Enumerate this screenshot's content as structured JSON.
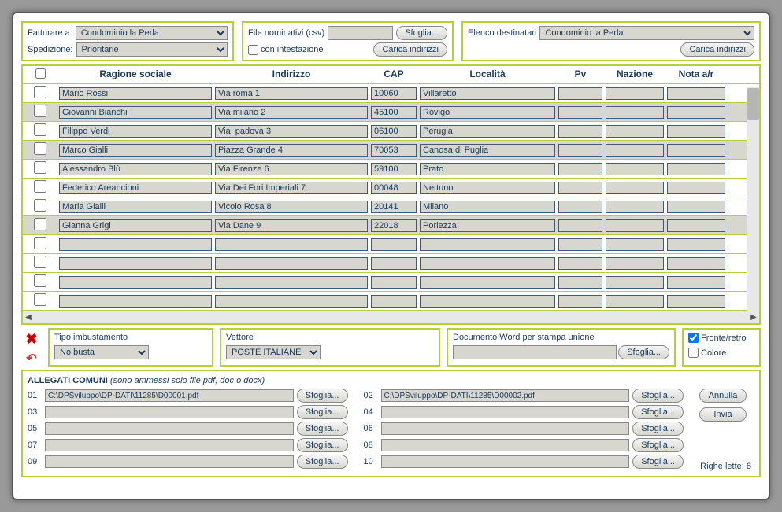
{
  "topbar": {
    "fatturare_label": "Fatturare a:",
    "fatturare_value": "Condominio la Perla",
    "spedizione_label": "Spedizione:",
    "spedizione_value": "Prioritarie",
    "file_nom_label": "File nominativi (csv)",
    "sfoglia": "Sfoglia...",
    "con_intest_label": "con intestazione",
    "carica_indirizzi": "Carica indirizzi",
    "elenco_dest_label": "Elenco destinatari",
    "elenco_dest_value": "Condominio la Perla"
  },
  "table": {
    "headers": {
      "ragione": "Ragione sociale",
      "indirizzo": "Indirizzo",
      "cap": "CAP",
      "localita": "Località",
      "pv": "Pv",
      "nazione": "Nazione",
      "nota": "Nota a/r"
    },
    "rows": [
      {
        "sel": false,
        "rs": "Mario Rossi",
        "ind": "Via roma 1",
        "cap": "10060",
        "loc": "Villaretto",
        "pv": "",
        "naz": "",
        "nota": ""
      },
      {
        "sel": true,
        "rs": "Giovanni Bianchi",
        "ind": "Via milano 2",
        "cap": "45100",
        "loc": "Rovigo",
        "pv": "",
        "naz": "",
        "nota": ""
      },
      {
        "sel": false,
        "rs": "Filippo Verdi",
        "ind": "Via  padova 3",
        "cap": "06100",
        "loc": "Perugia",
        "pv": "",
        "naz": "",
        "nota": ""
      },
      {
        "sel": true,
        "rs": "Marco Gialli",
        "ind": "Piazza Grande 4",
        "cap": "70053",
        "loc": "Canosa di Puglia",
        "pv": "",
        "naz": "",
        "nota": ""
      },
      {
        "sel": false,
        "rs": "Alessandro Blù",
        "ind": "Via Firenze 6",
        "cap": "59100",
        "loc": "Prato",
        "pv": "",
        "naz": "",
        "nota": ""
      },
      {
        "sel": false,
        "rs": "Federico Areancioni",
        "ind": "Via Dei Fori Imperiali 7",
        "cap": "00048",
        "loc": "Nettuno",
        "pv": "",
        "naz": "",
        "nota": ""
      },
      {
        "sel": false,
        "rs": "Maria Gialli",
        "ind": "Vicolo Rosa 8",
        "cap": "20141",
        "loc": "Milano",
        "pv": "",
        "naz": "",
        "nota": ""
      },
      {
        "sel": true,
        "rs": "Gianna Grigi",
        "ind": "Via Dane 9",
        "cap": "22018",
        "loc": "Porlezza",
        "pv": "",
        "naz": "",
        "nota": ""
      },
      {
        "sel": false,
        "rs": "",
        "ind": "",
        "cap": "",
        "loc": "",
        "pv": "",
        "naz": "",
        "nota": ""
      },
      {
        "sel": false,
        "rs": "",
        "ind": "",
        "cap": "",
        "loc": "",
        "pv": "",
        "naz": "",
        "nota": ""
      },
      {
        "sel": false,
        "rs": "",
        "ind": "",
        "cap": "",
        "loc": "",
        "pv": "",
        "naz": "",
        "nota": ""
      },
      {
        "sel": false,
        "rs": "",
        "ind": "",
        "cap": "",
        "loc": "",
        "pv": "",
        "naz": "",
        "nota": ""
      },
      {
        "sel": false,
        "rs": "",
        "ind": "",
        "cap": "",
        "loc": "",
        "pv": "",
        "naz": "",
        "nota": ""
      }
    ]
  },
  "midbar": {
    "tipo_label": "Tipo imbustamento",
    "tipo_value": "No busta",
    "vettore_label": "Vettore",
    "vettore_value": "POSTE ITALIANE",
    "doc_label": "Documento Word per stampa unione",
    "sfoglia": "Sfoglia...",
    "fronte_retro_label": "Fronte/retro",
    "colore_label": "Colore"
  },
  "allegati": {
    "title_main": "ALLEGATI COMUNI",
    "title_note": "(sono ammessi solo file pdf, doc o docx)",
    "sfoglia": "Sfoglia...",
    "annulla": "Annulla",
    "invia": "Invia",
    "left": [
      {
        "num": "01",
        "path": "C:\\DPSviluppo\\DP-DATI\\11285\\D00001.pdf"
      },
      {
        "num": "03",
        "path": ""
      },
      {
        "num": "05",
        "path": ""
      },
      {
        "num": "07",
        "path": ""
      },
      {
        "num": "09",
        "path": ""
      }
    ],
    "right": [
      {
        "num": "02",
        "path": "C:\\DPSviluppo\\DP-DATI\\11285\\D00002.pdf"
      },
      {
        "num": "04",
        "path": ""
      },
      {
        "num": "06",
        "path": ""
      },
      {
        "num": "08",
        "path": ""
      },
      {
        "num": "10",
        "path": ""
      }
    ],
    "righe_lette": "Righe lette: 8"
  }
}
